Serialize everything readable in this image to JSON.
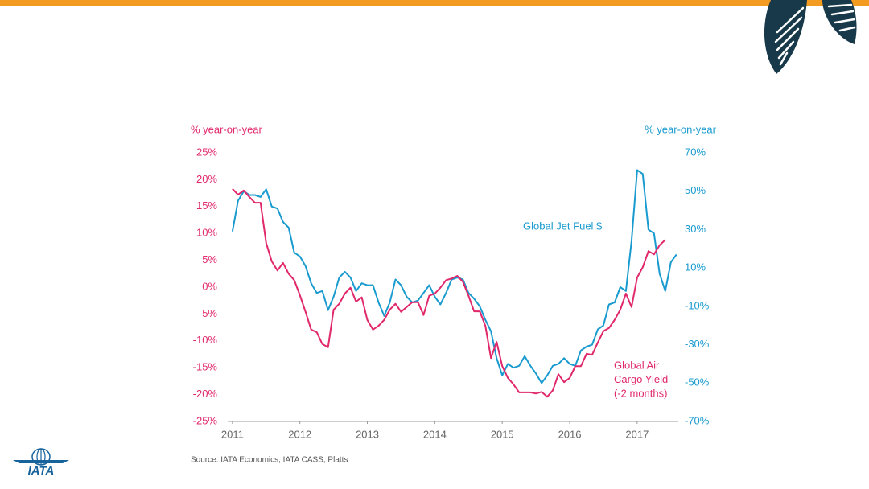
{
  "chart_data": {
    "type": "line",
    "y_axis_title": "% year-on-year",
    "y2_axis_title": "% year-on-year",
    "source": "Source: IATA Economics, IATA CASS, Platts",
    "logo": "IATA",
    "grid": false,
    "xlim": [
      2010.93,
      2017.61
    ],
    "xticks": [
      2011,
      2012,
      2013,
      2014,
      2015,
      2016,
      2017
    ],
    "ylim": [
      -25,
      25
    ],
    "yticks": [
      {
        "value": 25,
        "label": "25%"
      },
      {
        "value": 20,
        "label": "20%"
      },
      {
        "value": 15,
        "label": "15%"
      },
      {
        "value": 10,
        "label": "10%"
      },
      {
        "value": 5,
        "label": "5%"
      },
      {
        "value": 0,
        "label": "0%"
      },
      {
        "value": -5,
        "label": "-5%"
      },
      {
        "value": -10,
        "label": "-10%"
      },
      {
        "value": -15,
        "label": "-15%"
      },
      {
        "value": -20,
        "label": "-20%"
      },
      {
        "value": -25,
        "label": "-25%"
      }
    ],
    "y2lim": [
      -70,
      70
    ],
    "y2ticks": [
      {
        "value": 70,
        "label": "70%"
      },
      {
        "value": 50,
        "label": "50%"
      },
      {
        "value": 30,
        "label": "30%"
      },
      {
        "value": 10,
        "label": "10%"
      },
      {
        "value": -10,
        "label": "-10%"
      },
      {
        "value": -30,
        "label": "-30%"
      },
      {
        "value": -50,
        "label": "-50%"
      },
      {
        "value": -70,
        "label": "-70%"
      }
    ],
    "x": [
      2011,
      2011.083,
      2011.167,
      2011.25,
      2011.333,
      2011.417,
      2011.5,
      2011.583,
      2011.667,
      2011.75,
      2011.833,
      2011.917,
      2012,
      2012.083,
      2012.167,
      2012.25,
      2012.333,
      2012.417,
      2012.5,
      2012.583,
      2012.667,
      2012.75,
      2012.833,
      2012.917,
      2013,
      2013.083,
      2013.167,
      2013.25,
      2013.333,
      2013.417,
      2013.5,
      2013.583,
      2013.667,
      2013.75,
      2013.833,
      2013.917,
      2014,
      2014.083,
      2014.167,
      2014.25,
      2014.333,
      2014.417,
      2014.5,
      2014.583,
      2014.667,
      2014.75,
      2014.833,
      2014.917,
      2015,
      2015.083,
      2015.167,
      2015.25,
      2015.333,
      2015.417,
      2015.5,
      2015.583,
      2015.667,
      2015.75,
      2015.833,
      2015.917,
      2016,
      2016.083,
      2016.167,
      2016.25,
      2016.333,
      2016.417,
      2016.5,
      2016.583,
      2016.667,
      2016.75,
      2016.833,
      2016.917,
      2017,
      2017.083,
      2017.167,
      2017.25,
      2017.333,
      2017.417,
      2017.5,
      2017.583
    ],
    "series": [
      {
        "name": [
          "Global Jet Fuel $"
        ],
        "color": "#1a9bcf",
        "axis": "y2",
        "values": [
          29,
          45,
          50,
          48,
          48,
          47,
          51,
          42,
          41,
          34,
          31,
          18,
          16,
          11,
          2,
          -3,
          -2,
          -12,
          -5,
          5,
          8,
          5,
          -2,
          2,
          1,
          1,
          -8,
          -15,
          -8,
          4,
          1,
          -5,
          -8,
          -7,
          -3,
          1,
          -5,
          -9,
          -3,
          4,
          5,
          4,
          -3,
          -6,
          -10,
          -17,
          -23,
          -37,
          -46,
          -40,
          -42,
          -41,
          -36,
          -41,
          -45,
          -50,
          -46,
          -41,
          -40,
          -37,
          -40,
          -41,
          -33,
          -31,
          -30,
          -22,
          -20,
          -9,
          -8,
          0,
          -2,
          24,
          61,
          59,
          30,
          28,
          7,
          -2,
          13,
          17
        ]
      },
      {
        "name": [
          "Global Air",
          "Cargo Yield",
          "(-2 months)"
        ],
        "color": "#e0286b",
        "axis": "y",
        "values": [
          18.3,
          17.2,
          18,
          16.8,
          15.7,
          15.7,
          8.2,
          4.8,
          3.1,
          4.5,
          2.5,
          1.3,
          -1.5,
          -4.6,
          -7.9,
          -8.4,
          -10.6,
          -11.2,
          -4.2,
          -3.1,
          -1.2,
          -0.1,
          -2.7,
          -1.9,
          -6.1,
          -7.9,
          -7.2,
          -6.1,
          -4.2,
          -3.1,
          -4.6,
          -3.7,
          -2.8,
          -2.8,
          -5.2,
          -1.6,
          -1.2,
          -0.1,
          1.3,
          1.6,
          2.1,
          1,
          -1.6,
          -4.5,
          -4.5,
          -7.2,
          -13.2,
          -10.2,
          -14.7,
          -16.9,
          -18.1,
          -19.6,
          -19.6,
          -19.6,
          -19.8,
          -19.5,
          -20.4,
          -19.2,
          -16.2,
          -17.7,
          -16.9,
          -14.7,
          -14.7,
          -12.4,
          -12.6,
          -10.3,
          -8.2,
          -7.6,
          -6.1,
          -4.2,
          -1.2,
          -3.7,
          1.8,
          3.7,
          6.7,
          6.1,
          7.8,
          8.8,
          null,
          null
        ]
      }
    ]
  }
}
